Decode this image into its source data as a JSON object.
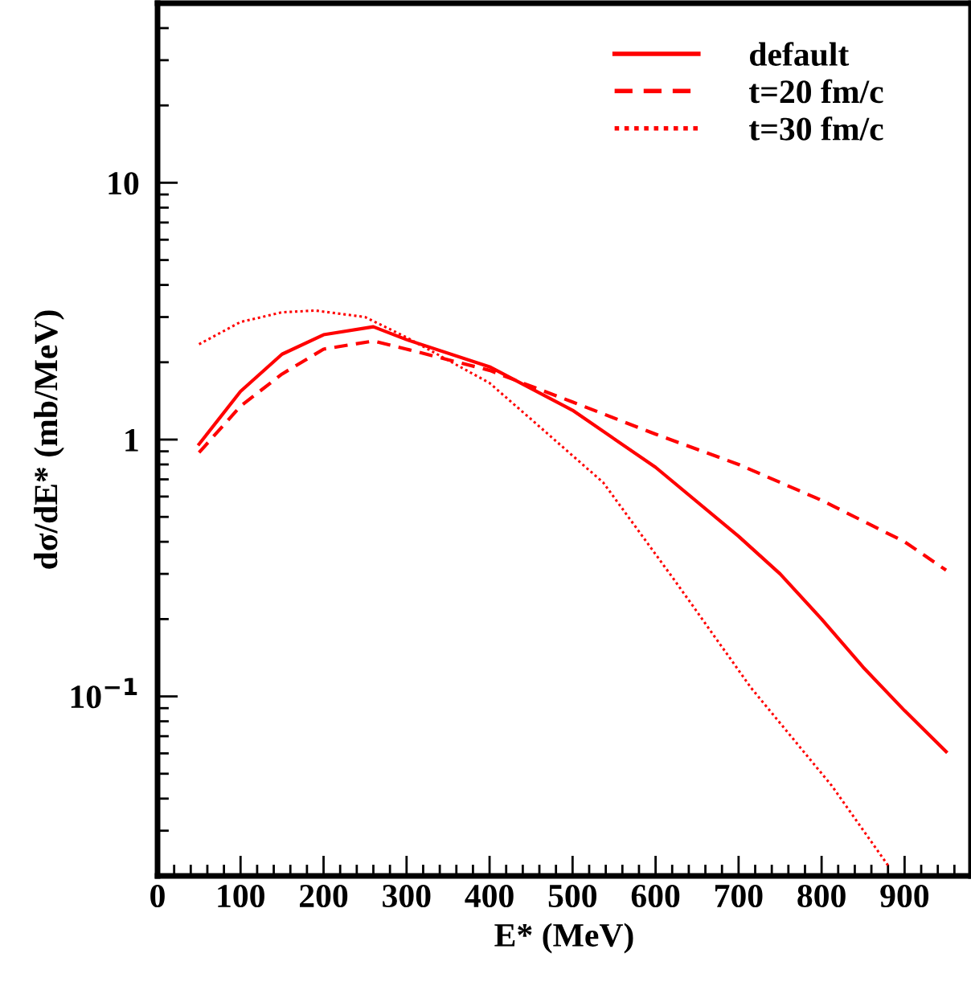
{
  "chart_data": {
    "type": "line",
    "xlabel": "E* (MeV)",
    "ylabel": "dσ/dE* (mb/MeV)",
    "log": "y",
    "xlim": [
      0,
      980
    ],
    "xticks": [
      0,
      100,
      200,
      300,
      400,
      500,
      600,
      700,
      800,
      900
    ],
    "ylim": [
      0.02,
      50
    ],
    "yticks": [
      {
        "value": 10,
        "label": "10"
      },
      {
        "value": 1,
        "label": "1"
      },
      {
        "value": 0.1,
        "label": "10$^{−1}$"
      }
    ],
    "legend": "top right",
    "grid": false,
    "series": [
      {
        "name": "default",
        "color": "#ff0000",
        "line_style": "solid",
        "x": [
          50,
          100,
          150,
          200,
          260,
          300,
          400,
          500,
          600,
          700,
          750,
          800,
          850,
          900,
          950
        ],
        "values": [
          0.96,
          1.54,
          2.15,
          2.56,
          2.75,
          2.45,
          1.92,
          1.3,
          0.78,
          0.42,
          0.3,
          0.2,
          0.13,
          0.088,
          0.061
        ]
      },
      {
        "name": "t=20 fm/c",
        "color": "#ff0000",
        "line_style": "dashed",
        "x": [
          50,
          100,
          150,
          200,
          260,
          300,
          400,
          500,
          600,
          700,
          800,
          900,
          950
        ],
        "values": [
          0.89,
          1.35,
          1.8,
          2.25,
          2.42,
          2.25,
          1.86,
          1.4,
          1.05,
          0.8,
          0.58,
          0.4,
          0.31
        ]
      },
      {
        "name": "t=30 fm/c",
        "color": "#ff0000",
        "line_style": "dotted",
        "x": [
          50,
          100,
          150,
          190,
          250,
          300,
          400,
          450,
          537,
          624,
          715,
          812,
          880
        ],
        "values": [
          2.35,
          2.87,
          3.13,
          3.18,
          3.0,
          2.5,
          1.66,
          1.2,
          0.68,
          0.28,
          0.108,
          0.045,
          0.022
        ]
      }
    ]
  }
}
